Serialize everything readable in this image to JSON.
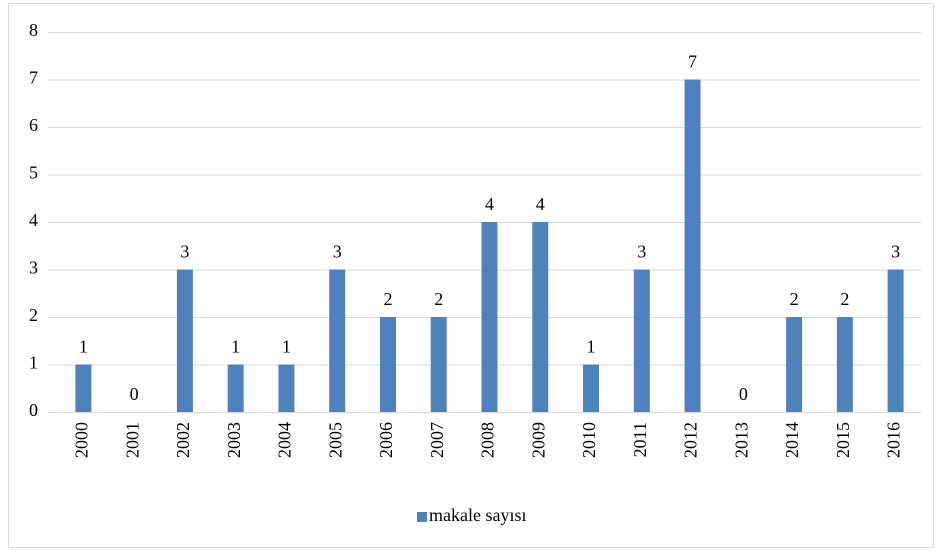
{
  "chart_data": {
    "type": "bar",
    "categories": [
      "2000",
      "2001",
      "2002",
      "2003",
      "2004",
      "2005",
      "2006",
      "2007",
      "2008",
      "2009",
      "2010",
      "2011",
      "2012",
      "2013",
      "2014",
      "2015",
      "2016"
    ],
    "series": [
      {
        "name": "makale sayısı",
        "color": "#4f81bd",
        "values": [
          1,
          0,
          3,
          1,
          1,
          3,
          2,
          2,
          4,
          4,
          1,
          3,
          7,
          0,
          2,
          2,
          3
        ]
      }
    ],
    "ylim": [
      0,
      8
    ],
    "yticks": [
      0,
      1,
      2,
      3,
      4,
      5,
      6,
      7,
      8
    ],
    "grid": true,
    "legend": "bottom"
  }
}
